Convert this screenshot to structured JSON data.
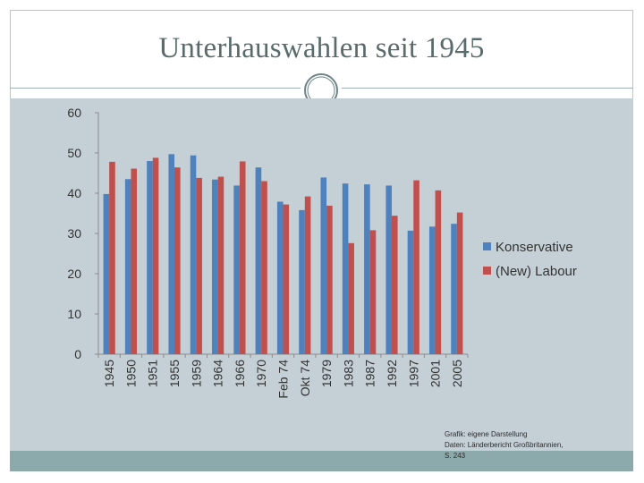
{
  "slide": {
    "title": "Unterhauswahlen seit 1945",
    "source_lines": [
      "Grafik: eigene Darstellung",
      "Daten: Länderbericht Großbritannien,",
      "S. 243"
    ]
  },
  "colors": {
    "conservative": "#4f81bd",
    "labour": "#c0504d",
    "chart_background": "#c5d0d6",
    "band": "#8ca9ab",
    "title": "#5a6b6c"
  },
  "chart_data": {
    "type": "bar",
    "title": "",
    "xlabel": "",
    "ylabel": "",
    "ylim": [
      0,
      60
    ],
    "yticks": [
      0,
      10,
      20,
      30,
      40,
      50,
      60
    ],
    "grid": false,
    "legend": "right",
    "categories": [
      "1945",
      "1950",
      "1951",
      "1955",
      "1959",
      "1964",
      "1966",
      "1970",
      "Feb 74",
      "Okt 74",
      "1979",
      "1983",
      "1987",
      "1992",
      "1997",
      "2001",
      "2005"
    ],
    "series": [
      {
        "name": "Konservative",
        "color": "#4f81bd",
        "values": [
          39.8,
          43.5,
          48.0,
          49.7,
          49.4,
          43.4,
          41.9,
          46.4,
          37.9,
          35.8,
          43.9,
          42.4,
          42.2,
          41.9,
          30.7,
          31.7,
          32.4
        ]
      },
      {
        "name": "(New) Labour",
        "color": "#c0504d",
        "values": [
          47.8,
          46.1,
          48.8,
          46.4,
          43.8,
          44.1,
          47.9,
          43.0,
          37.2,
          39.2,
          36.9,
          27.6,
          30.8,
          34.4,
          43.2,
          40.7,
          35.2
        ]
      }
    ]
  }
}
